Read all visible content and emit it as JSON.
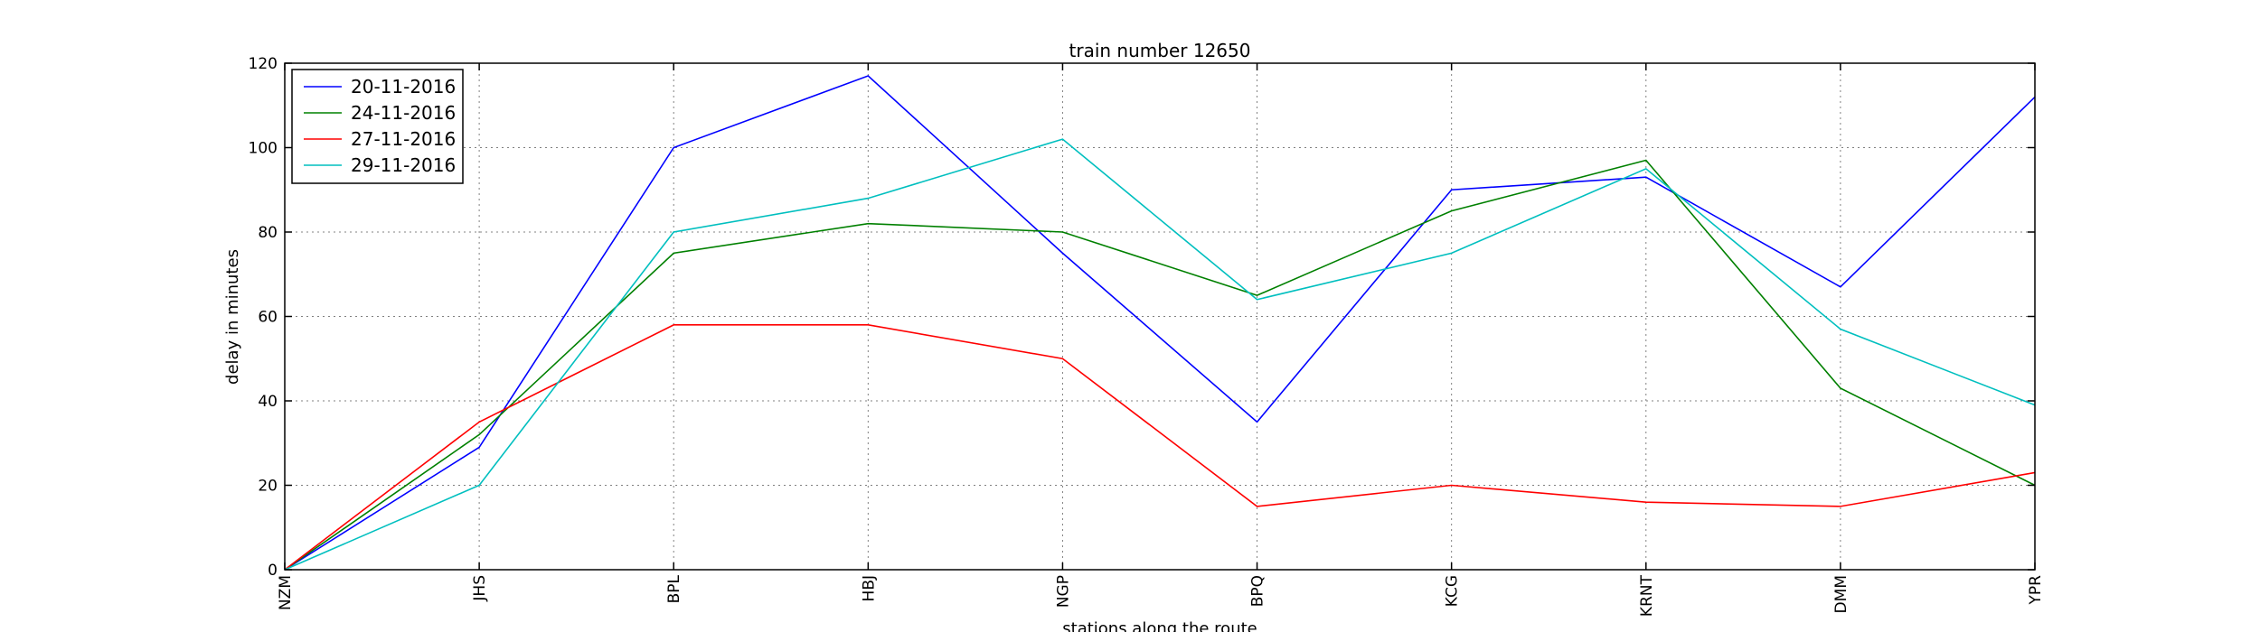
{
  "chart_data": {
    "type": "line",
    "title": "train number 12650",
    "xlabel": "stations along the route",
    "ylabel": "delay in minutes",
    "categories": [
      "NZM",
      "JHS",
      "BPL",
      "HBJ",
      "NGP",
      "BPQ",
      "KCG",
      "KRNT",
      "DMM",
      "YPR"
    ],
    "ylim": [
      0,
      120
    ],
    "yticks": [
      0,
      20,
      40,
      60,
      80,
      100,
      120
    ],
    "grid": true,
    "legend_position": "top-left",
    "series": [
      {
        "name": "20-11-2016",
        "color": "#0000ff",
        "values": [
          0,
          29,
          100,
          117,
          75,
          35,
          90,
          93,
          67,
          112
        ]
      },
      {
        "name": "24-11-2016",
        "color": "#008000",
        "values": [
          0,
          32,
          75,
          82,
          80,
          65,
          85,
          97,
          43,
          20
        ]
      },
      {
        "name": "27-11-2016",
        "color": "#ff0000",
        "values": [
          0,
          35,
          58,
          58,
          50,
          15,
          20,
          16,
          15,
          23
        ]
      },
      {
        "name": "29-11-2016",
        "color": "#00bfbf",
        "values": [
          0,
          20,
          80,
          88,
          102,
          64,
          75,
          95,
          57,
          39
        ]
      }
    ]
  }
}
